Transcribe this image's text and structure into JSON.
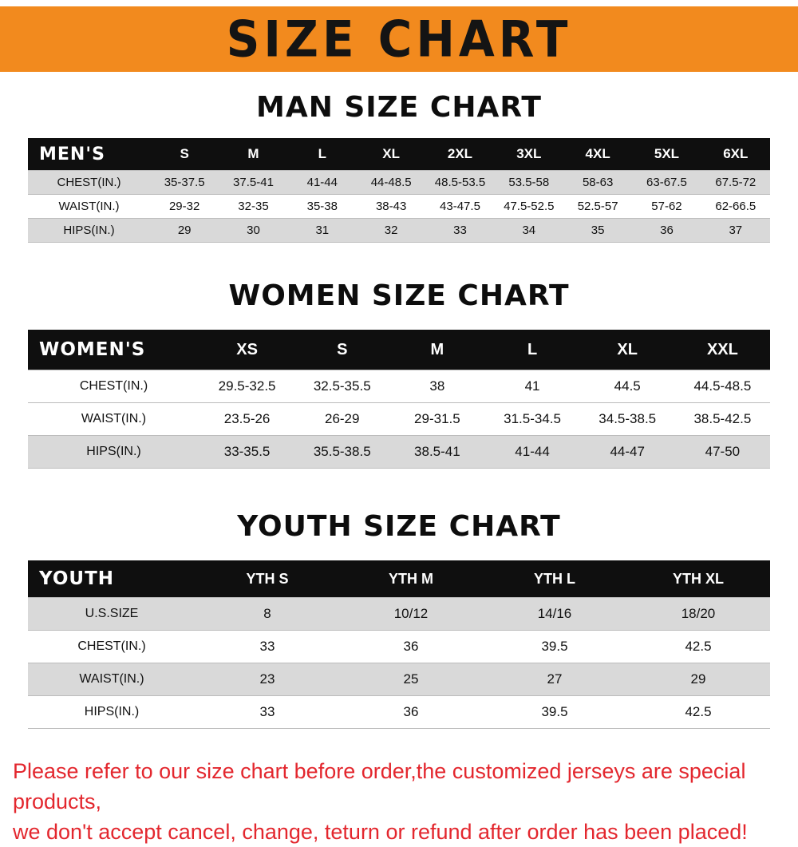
{
  "banner": {
    "title": "SIZE CHART"
  },
  "colors": {
    "banner_orange": "#F28A1E",
    "header_black": "#0F0F0F",
    "row_gray": "#D9D9D9",
    "footer_red": "#E3272E"
  },
  "sections": [
    {
      "heading": "MAN SIZE CHART",
      "table": {
        "label": "MEN'S",
        "columns": [
          "S",
          "M",
          "L",
          "XL",
          "2XL",
          "3XL",
          "4XL",
          "5XL",
          "6XL"
        ],
        "rows": [
          {
            "label": "CHEST(IN.)",
            "values": [
              "35-37.5",
              "37.5-41",
              "41-44",
              "44-48.5",
              "48.5-53.5",
              "53.5-58",
              "58-63",
              "63-67.5",
              "67.5-72"
            ]
          },
          {
            "label": "WAIST(IN.)",
            "values": [
              "29-32",
              "32-35",
              "35-38",
              "38-43",
              "43-47.5",
              "47.5-52.5",
              "52.5-57",
              "57-62",
              "62-66.5"
            ]
          },
          {
            "label": "HIPS(IN.)",
            "values": [
              "29",
              "30",
              "31",
              "32",
              "33",
              "34",
              "35",
              "36",
              "37"
            ]
          }
        ]
      }
    },
    {
      "heading": "WOMEN SIZE CHART",
      "table": {
        "label": "WOMEN'S",
        "columns": [
          "XS",
          "S",
          "M",
          "L",
          "XL",
          "XXL"
        ],
        "rows": [
          {
            "label": "CHEST(IN.)",
            "values": [
              "29.5-32.5",
              "32.5-35.5",
              "38",
              "41",
              "44.5",
              "44.5-48.5"
            ]
          },
          {
            "label": "WAIST(IN.)",
            "values": [
              "23.5-26",
              "26-29",
              "29-31.5",
              "31.5-34.5",
              "34.5-38.5",
              "38.5-42.5"
            ]
          },
          {
            "label": "HIPS(IN.)",
            "values": [
              "33-35.5",
              "35.5-38.5",
              "38.5-41",
              "41-44",
              "44-47",
              "47-50"
            ]
          }
        ]
      }
    },
    {
      "heading": "YOUTH SIZE CHART",
      "table": {
        "label": "YOUTH",
        "columns": [
          "YTH S",
          "YTH M",
          "YTH L",
          "YTH XL"
        ],
        "rows": [
          {
            "label": "U.S.SIZE",
            "values": [
              "8",
              "10/12",
              "14/16",
              "18/20"
            ]
          },
          {
            "label": "CHEST(IN.)",
            "values": [
              "33",
              "36",
              "39.5",
              "42.5"
            ]
          },
          {
            "label": "WAIST(IN.)",
            "values": [
              "23",
              "25",
              "27",
              "29"
            ]
          },
          {
            "label": "HIPS(IN.)",
            "values": [
              "33",
              "36",
              "39.5",
              "42.5"
            ]
          }
        ]
      }
    }
  ],
  "footer": {
    "line1": "Please refer to our size chart before order,the customized jerseys are special products,",
    "line2": "we don't accept cancel, change, teturn or refund after order has been placed!"
  }
}
